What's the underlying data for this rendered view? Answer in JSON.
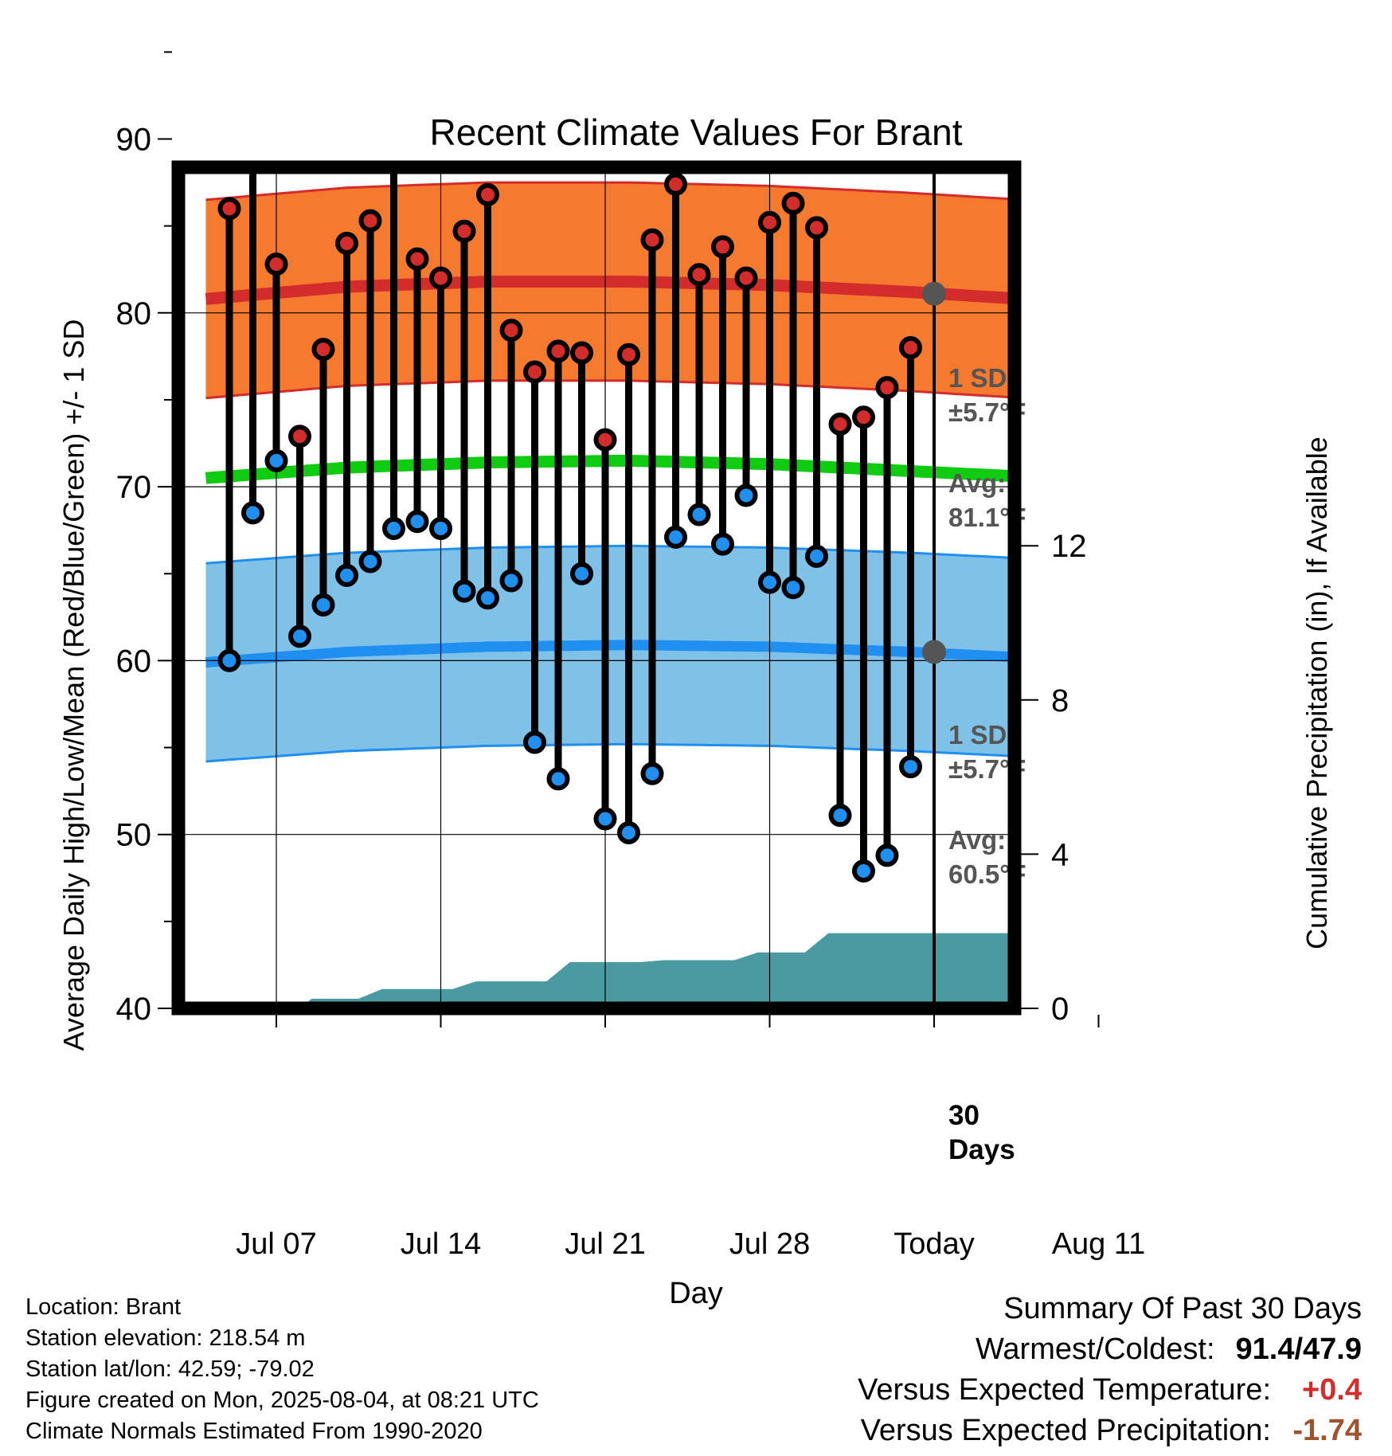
{
  "chart_data": {
    "type": "line",
    "title": "Recent Climate Values For Brant",
    "xlabel": "Day",
    "ylabel": "Average Daily High/Low/Mean (Red/Blue/Green) +/- 1 SD",
    "y2label": "Cumulative Precipitation (in), If Available",
    "ylim": [
      40,
      96
    ],
    "y_ticks": [
      40,
      50,
      60,
      70,
      80,
      90
    ],
    "y2lim": [
      0,
      16
    ],
    "y2_ticks": [
      0,
      4,
      8,
      12
    ],
    "xlim": [
      0,
      39.5
    ],
    "x_ticks": [
      {
        "x": 3,
        "label": "Jul 07"
      },
      {
        "x": 10,
        "label": "Jul 14"
      },
      {
        "x": 17,
        "label": "Jul 21"
      },
      {
        "x": 24,
        "label": "Jul 28"
      },
      {
        "x": 31,
        "label": "Today"
      },
      {
        "x": 38,
        "label": "Aug 11"
      }
    ],
    "days": [
      1,
      2,
      3,
      4,
      5,
      6,
      7,
      8,
      9,
      10,
      11,
      12,
      13,
      14,
      15,
      16,
      17,
      18,
      19,
      20,
      21,
      22,
      23,
      24,
      25,
      26,
      27,
      28,
      29,
      30
    ],
    "highs": [
      86.0,
      89.1,
      82.8,
      72.9,
      77.9,
      84.0,
      85.3,
      91.4,
      83.1,
      82.0,
      84.7,
      86.8,
      79.0,
      76.6,
      77.8,
      77.7,
      72.7,
      77.6,
      84.2,
      87.4,
      82.2,
      83.8,
      82.0,
      85.2,
      86.3,
      84.9,
      73.6,
      74.0,
      75.7,
      78.0
    ],
    "lows": [
      60.0,
      68.5,
      71.5,
      61.4,
      63.2,
      64.9,
      65.7,
      67.6,
      68.0,
      67.6,
      64.0,
      63.6,
      64.6,
      55.3,
      53.2,
      65.0,
      50.9,
      50.1,
      53.5,
      67.1,
      68.4,
      66.7,
      69.5,
      64.5,
      64.2,
      66.0,
      51.1,
      47.9,
      48.8,
      53.9
    ],
    "normal_x": [
      0,
      6,
      12,
      18,
      24,
      30,
      36,
      39.5
    ],
    "normal_high": [
      80.8,
      81.5,
      81.8,
      81.8,
      81.6,
      81.2,
      80.7,
      80.3
    ],
    "normal_low": [
      59.9,
      60.5,
      60.8,
      60.9,
      60.8,
      60.5,
      60.1,
      59.7
    ],
    "normal_mean": [
      70.5,
      71.1,
      71.4,
      71.5,
      71.3,
      70.9,
      70.5,
      70.0
    ],
    "high_sd": 5.7,
    "low_sd": 5.7,
    "precip_steps": [
      [
        0,
        0.0
      ],
      [
        4,
        0.0
      ],
      [
        4.5,
        0.25
      ],
      [
        6.5,
        0.25
      ],
      [
        7.5,
        0.5
      ],
      [
        10.5,
        0.5
      ],
      [
        11.5,
        0.7
      ],
      [
        14.5,
        0.7
      ],
      [
        15.5,
        1.2
      ],
      [
        18.5,
        1.2
      ],
      [
        19.5,
        1.25
      ],
      [
        22.5,
        1.25
      ],
      [
        23.5,
        1.45
      ],
      [
        25.5,
        1.45
      ],
      [
        26.5,
        1.95
      ],
      [
        31,
        1.95
      ],
      [
        39.5,
        1.95
      ]
    ],
    "today_x": 31,
    "labels": {
      "high_sd": "1 SD:",
      "high_sd_val": "±5.7°F",
      "high_avg": "Avg:",
      "high_avg_val": "81.1°F",
      "low_sd": "1 SD:",
      "low_sd_val": "±5.7°F",
      "low_avg": "Avg:",
      "low_avg_val": "60.5°F",
      "period_num": "30",
      "period_word": "Days"
    },
    "today_high_avg": 81.1,
    "today_low_avg": 60.5,
    "colors": {
      "high": "#d42b2b",
      "low": "#1f8ff0",
      "mean": "#10cc10",
      "high_band": "#f57a2e",
      "low_band": "#80c1e8",
      "precip": "#4a9aa2",
      "annotation": "#555555"
    }
  },
  "info": {
    "location": "Location: Brant",
    "elevation": "Station elevation: 218.54 m",
    "latlon": "Station lat/lon: 42.59; -79.02",
    "created": "Figure created on Mon, 2025-08-04, at 08:21 UTC",
    "normals": "Climate Normals Estimated From 1990-2020"
  },
  "summary": {
    "title": "Summary Of Past 30 Days",
    "warm_cold_label": "Warmest/Coldest:",
    "warm_cold_value": "91.4/47.9",
    "temp_label": "Versus Expected Temperature:",
    "temp_value": "+0.4",
    "temp_color": "#d42b2b",
    "precip_label": "Versus Expected Precipitation:",
    "precip_value": "-1.74",
    "precip_color": "#a0522d"
  }
}
